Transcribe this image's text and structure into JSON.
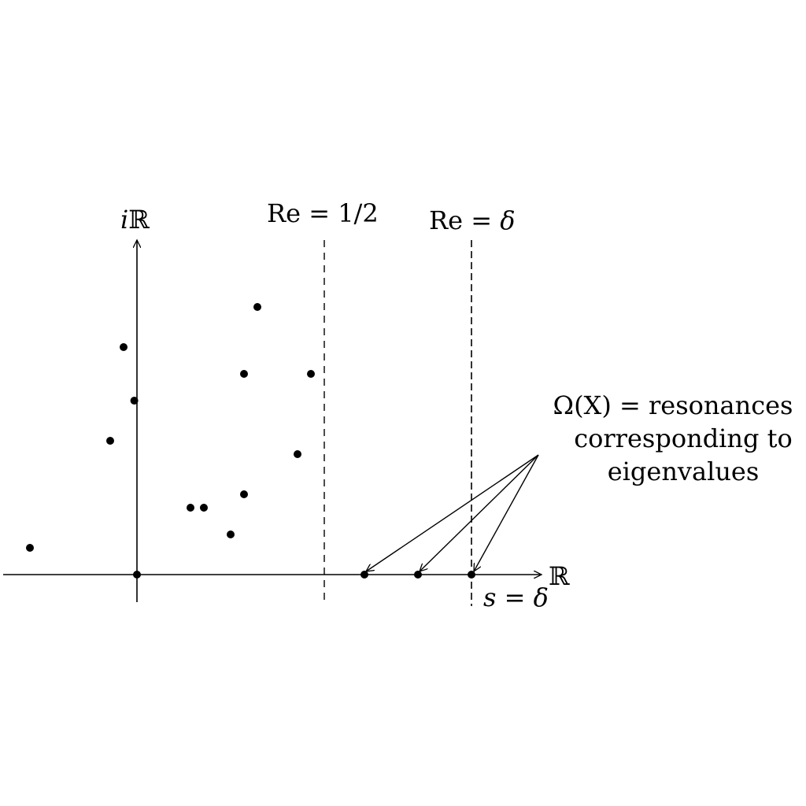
{
  "diagram": {
    "axes": {
      "real_axis_label": "ℝ",
      "imag_axis_label_italic": "i",
      "imag_axis_label_bb": "ℝ"
    },
    "lines": {
      "half_line_label": "Re = 1/2",
      "delta_line_label_prefix": "Re = ",
      "delta_line_label_symbol": "δ",
      "delta_line_value": "δ"
    },
    "s_label": {
      "var": "s",
      "eq": " = ",
      "symbol": "δ"
    },
    "annotation": {
      "line1": "Ω(X) = resonances",
      "line2": "corresponding to",
      "line3": "eigenvalues"
    },
    "colors": {
      "ink": "#000000",
      "background": "#ffffff"
    },
    "chart_data": {
      "type": "scatter",
      "x_domain_note": "",
      "resonances": [
        {
          "re": -0.8,
          "im": 0.2
        },
        {
          "re": -0.2,
          "im": 1.0
        },
        {
          "re": -0.1,
          "im": 1.7
        },
        {
          "re": -0.02,
          "im": 1.3
        },
        {
          "re": 0.0,
          "im": 0.0
        },
        {
          "re": 0.4,
          "im": 0.5
        },
        {
          "re": 0.5,
          "im": 0.5
        },
        {
          "re": 0.7,
          "im": 0.3
        },
        {
          "re": 0.8,
          "im": 0.6
        },
        {
          "re": 0.8,
          "im": 1.5
        },
        {
          "re": 0.9,
          "im": 2.0
        },
        {
          "re": 1.2,
          "im": 0.9
        },
        {
          "re": 1.3,
          "im": 1.5
        },
        {
          "re": 1.7,
          "im": 0.0
        },
        {
          "re": 2.1,
          "im": 0.0
        },
        {
          "re": 2.5,
          "im": 0.0
        }
      ],
      "eigenvalue_points": [
        1.7,
        2.1,
        2.5
      ],
      "half_line_re": 1.4,
      "delta_line_re": 2.5
    }
  }
}
